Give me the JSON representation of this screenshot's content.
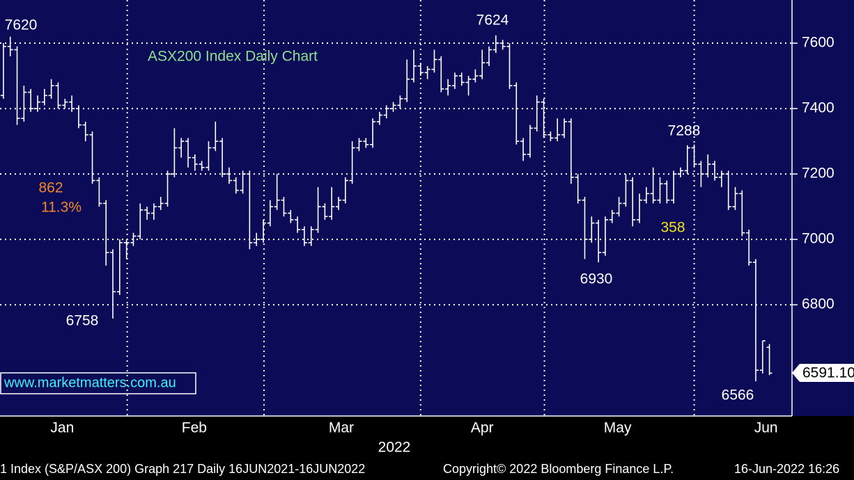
{
  "chart_data": {
    "type": "ohlc",
    "title": "ASX200 Index Daily Chart",
    "watermark": "www.marketmatters.com.au",
    "last_price_label": "6591.10",
    "year_label": "2022",
    "footer": [
      "1 Index (S&P/ASX 200) Graph 217  Daily 16JUN2021-16JUN2022",
      "Copyright© 2022 Bloomberg Finance L.P.",
      "16-Jun-2022 16:26"
    ],
    "bar_color": "#ffffff",
    "grid": true,
    "ylim": [
      6460,
      7732
    ],
    "yticks": [
      6800,
      7000,
      7200,
      7400,
      7600
    ],
    "xlim": [
      -0.5,
      115.3
    ],
    "xticks": [
      {
        "value": 8.6,
        "label": "Jan"
      },
      {
        "value": 27.9,
        "label": "Feb"
      },
      {
        "value": 49.4,
        "label": "Mar"
      },
      {
        "value": 70,
        "label": "Apr"
      },
      {
        "value": 89.8,
        "label": "May"
      },
      {
        "value": 111.5,
        "label": "Jun"
      }
    ],
    "xgrid": [
      18.1,
      38.1,
      61.0,
      79.1,
      101.0
    ],
    "annotations": [
      {
        "text": "7620",
        "color": "#ffffff"
      },
      {
        "text": "7624",
        "color": "#ffffff"
      },
      {
        "text": "7288",
        "color": "#ffffff"
      },
      {
        "text": "862",
        "color": "#f0862a"
      },
      {
        "text": "11.3%",
        "color": "#f0862a"
      },
      {
        "text": "358",
        "color": "#f2e31c"
      },
      {
        "text": "6758",
        "color": "#ffffff"
      },
      {
        "text": "6930",
        "color": "#ffffff"
      },
      {
        "text": "6566",
        "color": "#ffffff"
      }
    ],
    "bars": [
      [
        7440,
        7600,
        7430,
        7590
      ],
      [
        7590,
        7620,
        7560,
        7580
      ],
      [
        7580,
        7590,
        7350,
        7370
      ],
      [
        7370,
        7470,
        7360,
        7450
      ],
      [
        7450,
        7460,
        7390,
        7400
      ],
      [
        7400,
        7440,
        7390,
        7420
      ],
      [
        7420,
        7460,
        7410,
        7440
      ],
      [
        7440,
        7490,
        7430,
        7470
      ],
      [
        7470,
        7480,
        7400,
        7410
      ],
      [
        7410,
        7430,
        7400,
        7420
      ],
      [
        7420,
        7440,
        7390,
        7400
      ],
      [
        7400,
        7410,
        7340,
        7350
      ],
      [
        7350,
        7360,
        7300,
        7320
      ],
      [
        7320,
        7330,
        7170,
        7180
      ],
      [
        7180,
        7190,
        7100,
        7110
      ],
      [
        7110,
        7120,
        6920,
        6960
      ],
      [
        6960,
        6970,
        6758,
        6840
      ],
      [
        6840,
        7000,
        6830,
        6990
      ],
      [
        6990,
        7000,
        6940,
        6990
      ],
      [
        6990,
        7020,
        6980,
        7010
      ],
      [
        7010,
        7110,
        7000,
        7090
      ],
      [
        7090,
        7100,
        7060,
        7080
      ],
      [
        7080,
        7110,
        7060,
        7100
      ],
      [
        7100,
        7130,
        7090,
        7110
      ],
      [
        7110,
        7210,
        7100,
        7200
      ],
      [
        7200,
        7340,
        7190,
        7280
      ],
      [
        7280,
        7310,
        7250,
        7300
      ],
      [
        7300,
        7310,
        7220,
        7250
      ],
      [
        7250,
        7260,
        7210,
        7230
      ],
      [
        7230,
        7240,
        7210,
        7220
      ],
      [
        7220,
        7300,
        7210,
        7280
      ],
      [
        7280,
        7360,
        7270,
        7300
      ],
      [
        7300,
        7310,
        7190,
        7200
      ],
      [
        7200,
        7220,
        7170,
        7180
      ],
      [
        7180,
        7190,
        7140,
        7150
      ],
      [
        7150,
        7210,
        7140,
        7200
      ],
      [
        7200,
        7210,
        6970,
        6990
      ],
      [
        6990,
        7020,
        6980,
        7000
      ],
      [
        7000,
        7060,
        6990,
        7050
      ],
      [
        7050,
        7120,
        7040,
        7100
      ],
      [
        7100,
        7200,
        7090,
        7120
      ],
      [
        7120,
        7130,
        7070,
        7080
      ],
      [
        7080,
        7090,
        7050,
        7060
      ],
      [
        7060,
        7070,
        7020,
        7030
      ],
      [
        7030,
        7040,
        6980,
        6990
      ],
      [
        6990,
        7040,
        6980,
        7030
      ],
      [
        7030,
        7160,
        7020,
        7100
      ],
      [
        7100,
        7110,
        7060,
        7070
      ],
      [
        7070,
        7160,
        7060,
        7100
      ],
      [
        7100,
        7130,
        7090,
        7120
      ],
      [
        7120,
        7190,
        7110,
        7180
      ],
      [
        7180,
        7300,
        7170,
        7280
      ],
      [
        7280,
        7310,
        7270,
        7300
      ],
      [
        7300,
        7310,
        7280,
        7290
      ],
      [
        7290,
        7370,
        7280,
        7360
      ],
      [
        7360,
        7390,
        7350,
        7380
      ],
      [
        7380,
        7410,
        7370,
        7400
      ],
      [
        7400,
        7420,
        7390,
        7410
      ],
      [
        7410,
        7440,
        7400,
        7430
      ],
      [
        7430,
        7550,
        7420,
        7490
      ],
      [
        7490,
        7580,
        7480,
        7530
      ],
      [
        7530,
        7540,
        7500,
        7510
      ],
      [
        7510,
        7530,
        7490,
        7520
      ],
      [
        7520,
        7580,
        7510,
        7550
      ],
      [
        7550,
        7560,
        7450,
        7460
      ],
      [
        7460,
        7490,
        7440,
        7470
      ],
      [
        7470,
        7510,
        7460,
        7500
      ],
      [
        7500,
        7510,
        7470,
        7480
      ],
      [
        7480,
        7500,
        7440,
        7490
      ],
      [
        7490,
        7520,
        7480,
        7500
      ],
      [
        7500,
        7580,
        7490,
        7540
      ],
      [
        7540,
        7590,
        7530,
        7580
      ],
      [
        7580,
        7624,
        7570,
        7600
      ],
      [
        7600,
        7610,
        7580,
        7590
      ],
      [
        7590,
        7600,
        7460,
        7470
      ],
      [
        7470,
        7480,
        7290,
        7300
      ],
      [
        7300,
        7310,
        7240,
        7260
      ],
      [
        7260,
        7350,
        7250,
        7340
      ],
      [
        7340,
        7440,
        7330,
        7420
      ],
      [
        7420,
        7430,
        7310,
        7320
      ],
      [
        7320,
        7330,
        7300,
        7310
      ],
      [
        7310,
        7370,
        7300,
        7320
      ],
      [
        7320,
        7370,
        7310,
        7360
      ],
      [
        7360,
        7370,
        7170,
        7190
      ],
      [
        7190,
        7200,
        7110,
        7120
      ],
      [
        7120,
        7130,
        6940,
        7000
      ],
      [
        7000,
        7070,
        6990,
        7050
      ],
      [
        7050,
        7060,
        6930,
        6960
      ],
      [
        6960,
        7070,
        6950,
        7060
      ],
      [
        7060,
        7090,
        7050,
        7080
      ],
      [
        7080,
        7130,
        7070,
        7110
      ],
      [
        7110,
        7200,
        7100,
        7180
      ],
      [
        7180,
        7190,
        7040,
        7060
      ],
      [
        7060,
        7140,
        7050,
        7120
      ],
      [
        7120,
        7160,
        7110,
        7140
      ],
      [
        7140,
        7220,
        7110,
        7120
      ],
      [
        7120,
        7190,
        7110,
        7170
      ],
      [
        7170,
        7180,
        7110,
        7120
      ],
      [
        7120,
        7210,
        7110,
        7200
      ],
      [
        7200,
        7220,
        7190,
        7210
      ],
      [
        7210,
        7288,
        7200,
        7280
      ],
      [
        7280,
        7290,
        7220,
        7230
      ],
      [
        7230,
        7240,
        7160,
        7200
      ],
      [
        7200,
        7260,
        7190,
        7230
      ],
      [
        7230,
        7240,
        7180,
        7190
      ],
      [
        7190,
        7210,
        7160,
        7200
      ],
      [
        7200,
        7210,
        7090,
        7100
      ],
      [
        7100,
        7160,
        7090,
        7140
      ],
      [
        7140,
        7150,
        7010,
        7020
      ],
      [
        7020,
        7030,
        6920,
        6930
      ],
      [
        6930,
        6940,
        6566,
        6600
      ],
      [
        6600,
        6690,
        6590,
        6690
      ],
      [
        6670,
        6680,
        6585,
        6591
      ]
    ]
  }
}
